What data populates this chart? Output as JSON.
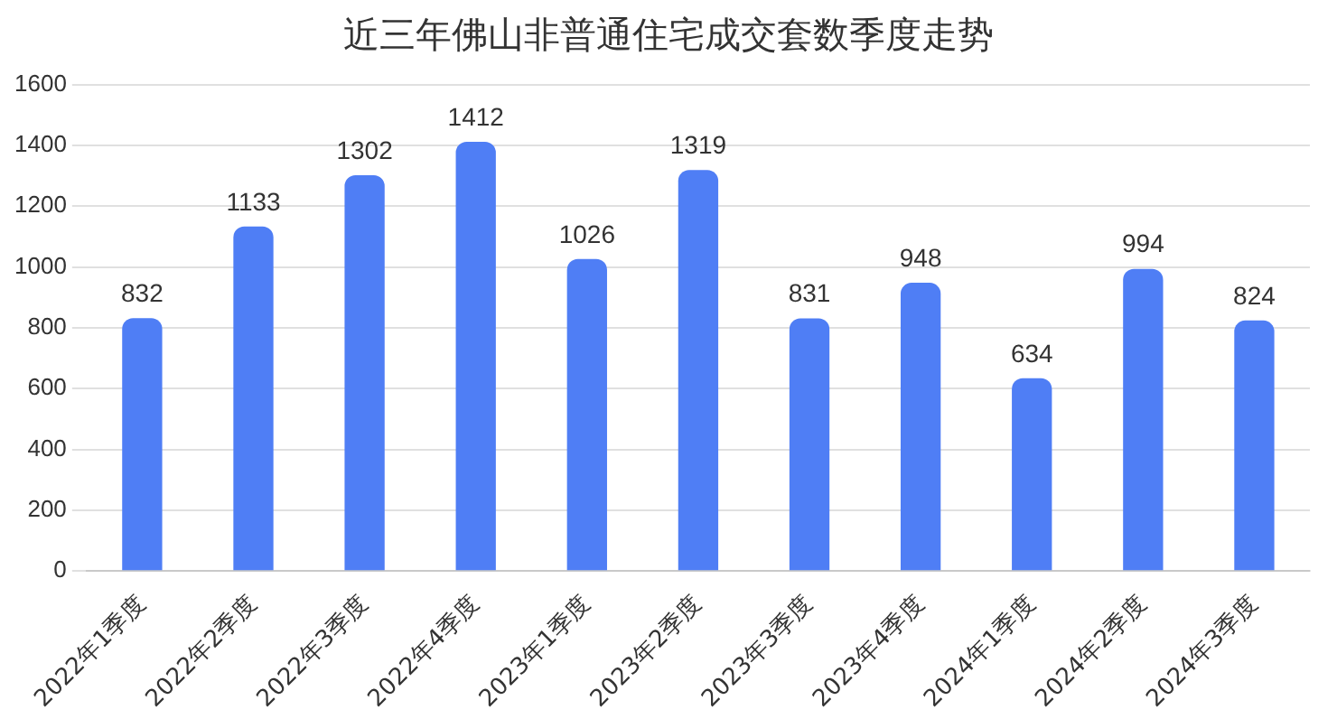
{
  "chart_data": {
    "type": "bar",
    "title": "近三年佛山非普通住宅成交套数季度走势",
    "categories": [
      "2022年1季度",
      "2022年2季度",
      "2022年3季度",
      "2022年4季度",
      "2023年1季度",
      "2023年2季度",
      "2023年3季度",
      "2023年4季度",
      "2024年1季度",
      "2024年2季度",
      "2024年3季度"
    ],
    "values": [
      832,
      1133,
      1302,
      1412,
      1026,
      1319,
      831,
      948,
      634,
      994,
      824
    ],
    "color": "#4f7ef5",
    "ylim": [
      0,
      1600
    ],
    "yticks": [
      0,
      200,
      400,
      600,
      800,
      1000,
      1200,
      1400,
      1600
    ],
    "grid": "y",
    "data_labels": true,
    "legend": false
  }
}
